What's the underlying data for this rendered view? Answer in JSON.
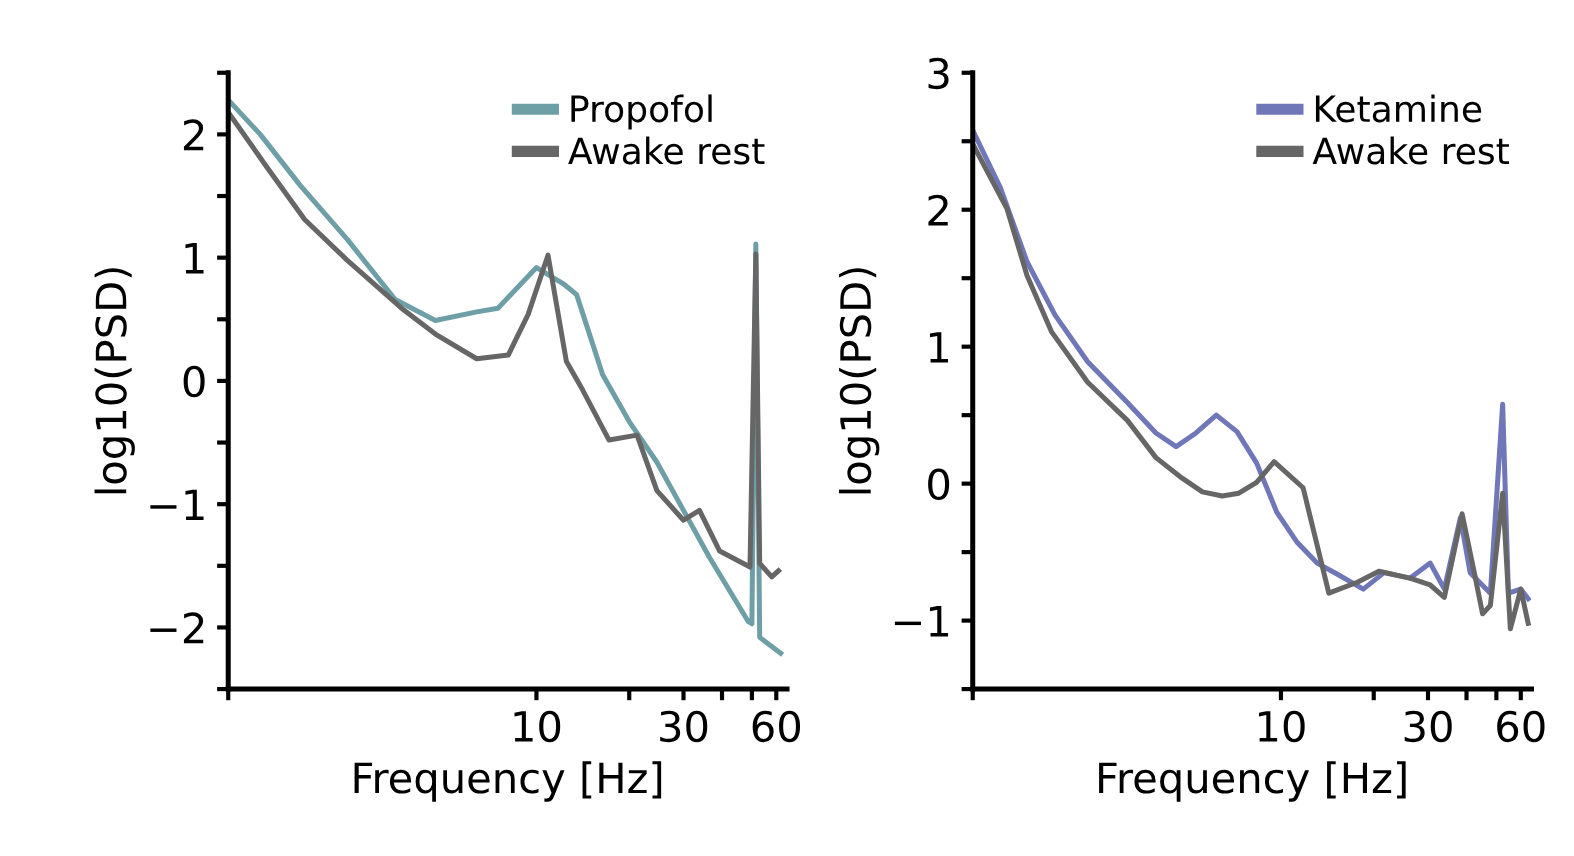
{
  "chart_data": [
    {
      "type": "line",
      "xlabel": "Frequency [Hz]",
      "ylabel": "log10(PSD)",
      "log": "x",
      "legend": "top right",
      "grid": false,
      "xlim": [
        1,
        65
      ],
      "xticks": [
        {
          "value": 1,
          "label": null
        },
        10,
        {
          "value": 20,
          "label": null
        },
        30,
        {
          "value": 40,
          "label": null
        },
        {
          "value": 50,
          "label": null
        },
        60
      ],
      "ylim": [
        -2.5,
        2.5
      ],
      "yticks": [
        {
          "value": -2.5,
          "label": null
        },
        {
          "value": -2,
          "label": "−2"
        },
        {
          "value": -1.5,
          "label": null
        },
        {
          "value": -1,
          "label": "−1"
        },
        {
          "value": -0.5,
          "label": null
        },
        0,
        {
          "value": 0.5,
          "label": null
        },
        1,
        {
          "value": 1.5,
          "label": null
        },
        2,
        {
          "value": 2.5,
          "label": null
        }
      ],
      "series": [
        {
          "name": "Propofol",
          "color": "#6f9fa6",
          "x": [
            1,
            1.27,
            1.72,
            2.43,
            3.48,
            4.7,
            6.4,
            7.5,
            10,
            12.2,
            13.5,
            16.4,
            20,
            24.6,
            30,
            36.4,
            48.6,
            50,
            51.5,
            53,
            62
          ],
          "values": [
            2.28,
            2.0,
            1.58,
            1.15,
            0.66,
            0.49,
            0.56,
            0.59,
            0.92,
            0.79,
            0.7,
            0.05,
            -0.33,
            -0.66,
            -1.05,
            -1.43,
            -1.95,
            -1.97,
            1.11,
            -2.08,
            -2.21
          ]
        },
        {
          "name": "Awake rest",
          "color": "#666666",
          "x": [
            1,
            1.33,
            1.77,
            2.43,
            3.65,
            4.7,
            6.4,
            8.1,
            9.4,
            10.9,
            12.5,
            14.1,
            17.2,
            21.2,
            24.6,
            30,
            33.8,
            39.3,
            49.3,
            51.5,
            53,
            58,
            61
          ],
          "values": [
            2.18,
            1.74,
            1.31,
            0.98,
            0.59,
            0.38,
            0.18,
            0.21,
            0.54,
            1.02,
            0.16,
            -0.07,
            -0.48,
            -0.44,
            -0.89,
            -1.13,
            -1.05,
            -1.38,
            -1.51,
            1.03,
            -1.48,
            -1.59,
            -1.54
          ]
        }
      ]
    },
    {
      "type": "line",
      "xlabel": "Frequency [Hz]",
      "ylabel": "log10(PSD)",
      "log": "x",
      "legend": "top right",
      "grid": false,
      "xlim": [
        1,
        65
      ],
      "xticks": [
        {
          "value": 1,
          "label": null
        },
        10,
        {
          "value": 20,
          "label": null
        },
        30,
        {
          "value": 40,
          "label": null
        },
        {
          "value": 50,
          "label": null
        },
        60
      ],
      "ylim": [
        -1.5,
        3
      ],
      "yticks": [
        {
          "value": -1.5,
          "label": null
        },
        {
          "value": -1,
          "label": "−1"
        },
        {
          "value": -0.5,
          "label": null
        },
        0,
        {
          "value": 0.5,
          "label": null
        },
        1,
        {
          "value": 1.5,
          "label": null
        },
        2,
        {
          "value": 2.5,
          "label": null
        },
        3
      ],
      "series": [
        {
          "name": "Ketamine",
          "color": "#7077b8",
          "x": [
            1,
            1.23,
            1.5,
            1.85,
            2.36,
            3.18,
            3.93,
            4.57,
            5.3,
            6.17,
            7.2,
            8.34,
            9.7,
            11.3,
            13.1,
            15.2,
            18.5,
            21.6,
            26.2,
            30.5,
            33.9,
            38.2,
            41.1,
            47.8,
            52.4,
            54.7,
            60,
            63.4
          ],
          "values": [
            2.58,
            2.16,
            1.62,
            1.23,
            0.89,
            0.59,
            0.37,
            0.27,
            0.37,
            0.5,
            0.38,
            0.15,
            -0.21,
            -0.43,
            -0.58,
            -0.66,
            -0.77,
            -0.65,
            -0.69,
            -0.58,
            -0.77,
            -0.25,
            -0.65,
            -0.8,
            0.58,
            -0.8,
            -0.77,
            -0.84
          ]
        },
        {
          "name": "Awake rest",
          "color": "#666666",
          "x": [
            1,
            1.29,
            1.5,
            1.8,
            2.36,
            3.18,
            3.93,
            4.78,
            5.56,
            6.45,
            7.3,
            8.34,
            9.5,
            11.8,
            14.3,
            17.7,
            20.8,
            26.2,
            30.5,
            33.9,
            38.7,
            42.4,
            45.1,
            47.8,
            52.4,
            55.5,
            60,
            63.4
          ],
          "values": [
            2.48,
            2.01,
            1.52,
            1.11,
            0.74,
            0.46,
            0.19,
            0.04,
            -0.06,
            -0.09,
            -0.07,
            0.01,
            0.16,
            -0.03,
            -0.8,
            -0.72,
            -0.64,
            -0.69,
            -0.74,
            -0.83,
            -0.22,
            -0.65,
            -0.95,
            -0.89,
            -0.07,
            -1.06,
            -0.77,
            -1.02
          ]
        }
      ]
    }
  ]
}
